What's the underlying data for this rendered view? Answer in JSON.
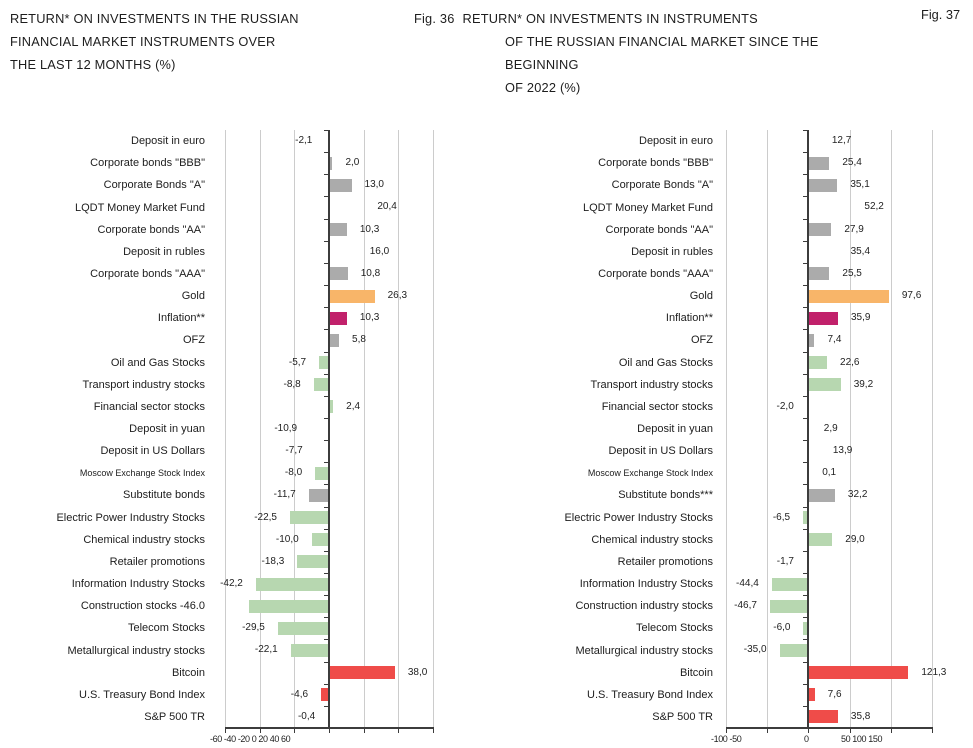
{
  "page": {
    "fig36": "Fig. 36",
    "fig37": "Fig. 37"
  },
  "colors": {
    "cyan": "#1badе6",
    "cyan_hex": "#1bade6",
    "gray": "#ababab",
    "green": "#b7d7b0",
    "orange": "#f8b569",
    "magenta": "#c1216b",
    "red": "#ef4c49"
  },
  "chart_data": [
    {
      "type": "bar",
      "orientation": "horizontal",
      "title": "RETURN* ON INVESTMENTS IN THE RUSSIAN FINANCIAL MARKET INSTRUMENTS OVER THE LAST 12 MONTHS (%)",
      "title_lines": [
        "RETURN* ON INVESTMENTS IN THE RUSSIAN",
        "FINANCIAL MARKET INSTRUMENTS OVER",
        "THE LAST 12 MONTHS (%)"
      ],
      "xlabel": "",
      "ylabel": "",
      "xlim": [
        -60,
        60
      ],
      "ticks": [
        -60,
        -40,
        -20,
        0,
        20,
        40,
        60
      ],
      "axis_text": "-60 -40 -20 0 20 40 60",
      "grid": true,
      "legend": "none",
      "categories": [
        {
          "label": "Deposit in euro",
          "value": -2.1,
          "display": "-2,1",
          "color": "cyan"
        },
        {
          "label": "Corporate bonds \"BBB\"",
          "value": 2.0,
          "display": "2,0",
          "color": "gray"
        },
        {
          "label": "Corporate Bonds \"A\"",
          "value": 13.0,
          "display": "13,0",
          "color": "gray"
        },
        {
          "label": "LQDT Money Market Fund",
          "value": 20.4,
          "display": "20,4",
          "color": "cyan"
        },
        {
          "label": "Corporate bonds \"AA\"",
          "value": 10.3,
          "display": "10,3",
          "color": "gray"
        },
        {
          "label": "Deposit in rubles",
          "value": 16.0,
          "display": "16,0",
          "color": "cyan"
        },
        {
          "label": "Corporate bonds \"AAA\"",
          "value": 10.8,
          "display": "10,8",
          "color": "gray"
        },
        {
          "label": "Gold",
          "value": 26.3,
          "display": "26,3",
          "color": "orange"
        },
        {
          "label": "Inflation**",
          "value": 10.3,
          "display": "10,3",
          "color": "magenta"
        },
        {
          "label": "OFZ",
          "value": 5.8,
          "display": "5,8",
          "color": "gray"
        },
        {
          "label": "Oil and Gas Stocks",
          "value": -5.7,
          "display": "-5,7",
          "color": "green"
        },
        {
          "label": "Transport industry stocks",
          "value": -8.8,
          "display": "-8,8",
          "color": "green"
        },
        {
          "label": "Financial sector stocks",
          "value": 2.4,
          "display": "2,4",
          "color": "green"
        },
        {
          "label": "Deposit in yuan",
          "value": -10.9,
          "display": "-10,9",
          "color": "cyan"
        },
        {
          "label": "Deposit in US Dollars",
          "value": -7.7,
          "display": "-7,7",
          "color": "cyan"
        },
        {
          "label": "Moscow Exchange Stock Index",
          "value": -8.0,
          "display": "-8,0",
          "color": "green",
          "small": true
        },
        {
          "label": "Substitute bonds",
          "value": -11.7,
          "display": "-11,7",
          "color": "gray"
        },
        {
          "label": "Electric Power Industry Stocks",
          "value": -22.5,
          "display": "-22,5",
          "color": "green"
        },
        {
          "label": "Chemical industry stocks",
          "value": -10.0,
          "display": "-10,0",
          "color": "green"
        },
        {
          "label": "Retailer promotions",
          "value": -18.3,
          "display": "-18,3",
          "color": "green"
        },
        {
          "label": "Information Industry Stocks",
          "value": -42.2,
          "display": "-42,2",
          "color": "green"
        },
        {
          "label": "Construction stocks -46.0",
          "value": -46.0,
          "display": null,
          "color": "green"
        },
        {
          "label": "Telecom Stocks",
          "value": -29.5,
          "display": "-29,5",
          "color": "green"
        },
        {
          "label": "Metallurgical industry stocks",
          "value": -22.1,
          "display": "-22,1",
          "color": "green"
        },
        {
          "label": "Bitcoin",
          "value": 38.0,
          "display": "38,0",
          "color": "red"
        },
        {
          "label": "U.S. Treasury Bond Index",
          "value": -4.6,
          "display": "-4,6",
          "color": "red"
        },
        {
          "label": "S&P 500 TR",
          "value": -0.4,
          "display": "-0,4",
          "color": "red"
        }
      ]
    },
    {
      "type": "bar",
      "orientation": "horizontal",
      "title": "RETURN* ON INVESTMENTS IN INSTRUMENTS OF THE RUSSIAN FINANCIAL MARKET SINCE THE BEGINNING OF 2022 (%)",
      "title_lines": [
        "RETURN* ON INVESTMENTS IN INSTRUMENTS",
        "OF THE RUSSIAN FINANCIAL MARKET SINCE THE",
        "BEGINNING",
        "OF 2022 (%)"
      ],
      "xlabel": "",
      "ylabel": "",
      "xlim": [
        -100,
        150
      ],
      "ticks": [
        -100,
        -50,
        0,
        50,
        100,
        150
      ],
      "axis_groups": [
        "-100 -50",
        "0",
        "50 100 150"
      ],
      "grid": true,
      "legend": "none",
      "categories": [
        {
          "label": "Deposit in euro",
          "value": 12.7,
          "display": "12,7",
          "color": "cyan"
        },
        {
          "label": "Corporate bonds \"BBB\"",
          "value": 25.4,
          "display": "25,4",
          "color": "gray"
        },
        {
          "label": "Corporate Bonds \"A\"",
          "value": 35.1,
          "display": "35,1",
          "color": "gray"
        },
        {
          "label": "LQDT Money Market Fund",
          "value": 52.2,
          "display": "52,2",
          "color": "cyan"
        },
        {
          "label": "Corporate bonds \"AA\"",
          "value": 27.9,
          "display": "27,9",
          "color": "gray"
        },
        {
          "label": "Deposit in rubles",
          "value": 35.4,
          "display": "35,4",
          "color": "cyan"
        },
        {
          "label": "Corporate bonds \"AAA\"",
          "value": 25.5,
          "display": "25,5",
          "color": "gray"
        },
        {
          "label": "Gold",
          "value": 97.6,
          "display": "97,6",
          "color": "orange"
        },
        {
          "label": "Inflation**",
          "value": 35.9,
          "display": "35,9",
          "color": "magenta"
        },
        {
          "label": "OFZ",
          "value": 7.4,
          "display": "7,4",
          "color": "gray"
        },
        {
          "label": "Oil and Gas Stocks",
          "value": 22.6,
          "display": "22,6",
          "color": "green"
        },
        {
          "label": "Transport industry stocks",
          "value": 39.2,
          "display": "39,2",
          "color": "green"
        },
        {
          "label": "Financial sector stocks",
          "value": -2.0,
          "display": "-2,0",
          "color": "green"
        },
        {
          "label": "Deposit in yuan",
          "value": 2.9,
          "display": "2,9",
          "color": "cyan"
        },
        {
          "label": "Deposit in US Dollars",
          "value": 13.9,
          "display": "13,9",
          "color": "cyan"
        },
        {
          "label": "Moscow Exchange Stock Index",
          "value": 0.1,
          "display": "0,1",
          "color": "green",
          "small": true
        },
        {
          "label": "Substitute bonds***",
          "value": 32.2,
          "display": "32,2",
          "color": "gray"
        },
        {
          "label": "Electric Power Industry Stocks",
          "value": -6.5,
          "display": "-6,5",
          "color": "green"
        },
        {
          "label": "Chemical industry stocks",
          "value": 29.0,
          "display": "29,0",
          "color": "green"
        },
        {
          "label": "Retailer promotions",
          "value": -1.7,
          "display": "-1,7",
          "color": "green"
        },
        {
          "label": "Information Industry Stocks",
          "value": -44.4,
          "display": "-44,4",
          "color": "green"
        },
        {
          "label": "Construction industry stocks",
          "value": -46.7,
          "display": "-46,7",
          "color": "green"
        },
        {
          "label": "Telecom Stocks",
          "value": -6.0,
          "display": "-6,0",
          "color": "green"
        },
        {
          "label": "Metallurgical industry stocks",
          "value": -35.0,
          "display": "-35,0",
          "color": "green"
        },
        {
          "label": "Bitcoin",
          "value": 121.3,
          "display": "121,3",
          "color": "red"
        },
        {
          "label": "U.S. Treasury Bond Index",
          "value": 7.6,
          "display": "7,6",
          "color": "red"
        },
        {
          "label": "S&P 500 TR",
          "value": 35.8,
          "display": "35,8",
          "color": "red"
        }
      ]
    }
  ]
}
